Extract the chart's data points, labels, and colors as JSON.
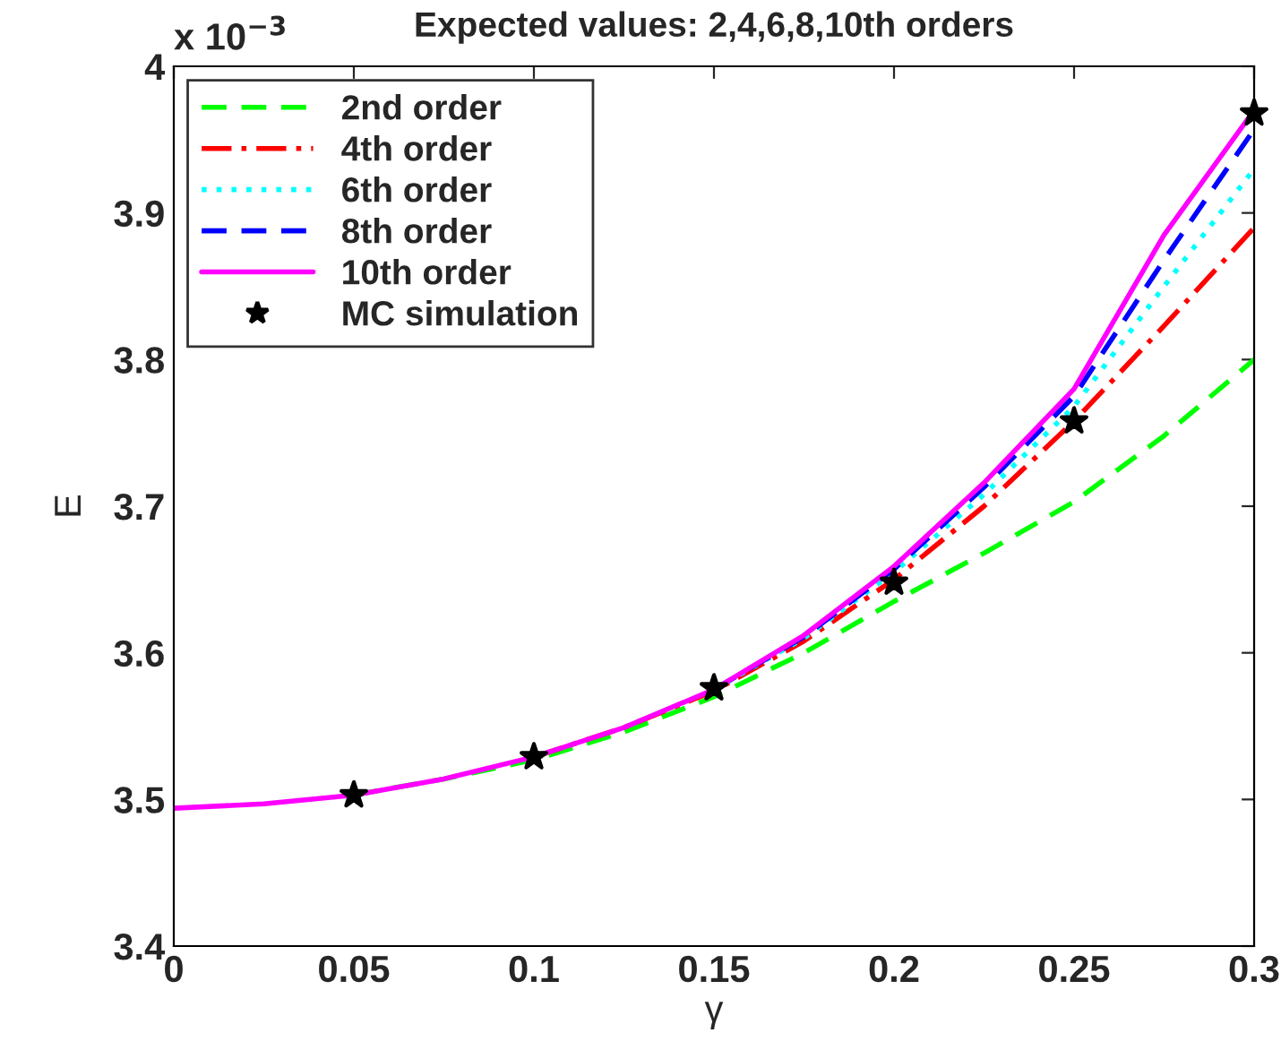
{
  "chart_data": {
    "type": "line",
    "title": "Expected values: 2,4,6,8,10th orders",
    "xlabel": "γ",
    "ylabel": "E",
    "annotations": [
      "x 10$^{−3}$"
    ],
    "xlim": [
      0,
      0.3
    ],
    "xticks": [
      0,
      0.05,
      0.1,
      0.15,
      0.2,
      0.25,
      0.3
    ],
    "ylim": [
      3.4,
      4
    ],
    "yticks": [
      3.4,
      3.5,
      3.6,
      3.7,
      3.8,
      3.9,
      4
    ],
    "grid": false,
    "legend": "top left",
    "x": [
      0,
      0.025,
      0.05,
      0.075,
      0.1,
      0.125,
      0.15,
      0.175,
      0.2,
      0.225,
      0.25,
      0.275,
      0.3
    ],
    "series": [
      {
        "name": "2nd order",
        "color": "#00ff00",
        "line_style": "dashed",
        "values": [
          null,
          null,
          3.503,
          3.514,
          3.527,
          3.546,
          3.57,
          3.6,
          3.635,
          3.668,
          3.703,
          3.748,
          3.8
        ]
      },
      {
        "name": "4th order",
        "color": "#ff0000",
        "line_style": "dashdot",
        "values": [
          null,
          null,
          null,
          null,
          3.529,
          3.549,
          3.574,
          3.608,
          3.65,
          3.7,
          3.758,
          3.823,
          3.89
        ]
      },
      {
        "name": "6th order",
        "color": "#00ffff",
        "line_style": "dotted",
        "values": [
          null,
          null,
          null,
          null,
          null,
          null,
          3.575,
          3.61,
          3.655,
          3.708,
          3.768,
          3.85,
          3.93
        ]
      },
      {
        "name": "8th order",
        "color": "#0000ff",
        "line_style": "dashed",
        "values": [
          null,
          null,
          null,
          null,
          null,
          null,
          3.575,
          3.611,
          3.657,
          3.713,
          3.775,
          3.868,
          3.957
        ]
      },
      {
        "name": "10th order",
        "color": "#ff00ff",
        "line_style": "solid",
        "values": [
          3.494,
          3.497,
          3.503,
          3.514,
          3.529,
          3.549,
          3.575,
          3.612,
          3.659,
          3.716,
          3.78,
          3.885,
          3.97
        ]
      },
      {
        "name": "MC simulation",
        "type": "scatter",
        "color": "#000000",
        "marker": "star",
        "x": [
          0.05,
          0.1,
          0.15,
          0.2,
          0.25,
          0.3
        ],
        "values": [
          3.503,
          3.529,
          3.576,
          3.648,
          3.758,
          3.968
        ]
      }
    ]
  }
}
